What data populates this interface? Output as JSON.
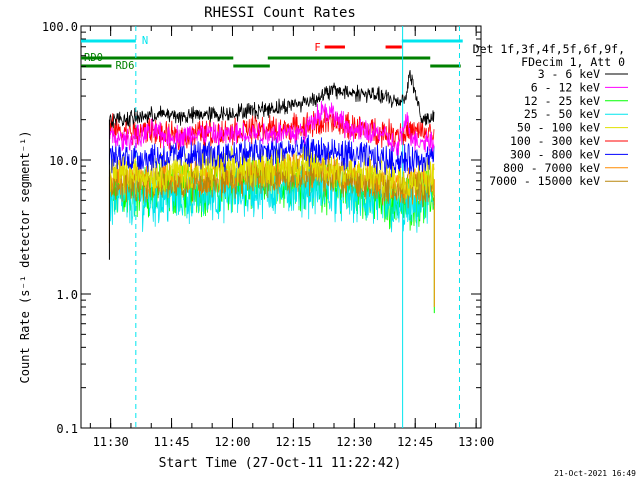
{
  "chart_data": {
    "type": "line",
    "title": "RHESSI Count Rates",
    "xlabel": "Start Time (27-Oct-11 11:22:42)",
    "ylabel": "Count Rate (s⁻¹ detector segment⁻¹)",
    "yscale": "log",
    "ylim": [
      0.1,
      100.0
    ],
    "xlim_minutes_after_start": [
      0,
      98.5
    ],
    "x_tick_labels": [
      "11:30",
      "11:45",
      "12:00",
      "12:15",
      "12:30",
      "12:45",
      "13:00"
    ],
    "x_tick_minutes_after_start": [
      7.3,
      22.3,
      37.3,
      52.3,
      67.3,
      82.3,
      97.3
    ],
    "y_tick_labels": [
      "100.0",
      "10.0",
      "1.0",
      "0.1"
    ],
    "y_tick_values": [
      100.0,
      10.0,
      1.0,
      0.1
    ],
    "legend_position": "right",
    "legend_header": [
      "Det 1f,3f,4f,5f,6f,9f,",
      "FDecim 1, Att 0"
    ],
    "series": [
      {
        "name": "3 - 6 keV",
        "color": "#000000",
        "x": [
          7,
          10,
          15,
          20,
          25,
          30,
          35,
          40,
          45,
          50,
          55,
          58,
          62,
          66,
          70,
          74,
          78,
          80,
          81,
          84,
          87
        ],
        "values": [
          20,
          20,
          21,
          22,
          21,
          22,
          22,
          23,
          24,
          25,
          27,
          29,
          33,
          32,
          31,
          30,
          27,
          30,
          45,
          20,
          20
        ]
      },
      {
        "name": "6 - 12 keV",
        "color": "#ff00ff",
        "x": [
          7,
          10,
          15,
          18,
          20,
          25,
          30,
          35,
          40,
          45,
          50,
          55,
          58,
          60,
          62,
          66,
          70,
          74,
          78,
          80,
          82,
          84,
          87
        ],
        "values": [
          15,
          14,
          15,
          17,
          15,
          15,
          16,
          15,
          16,
          16,
          16,
          16,
          22,
          24,
          22,
          17,
          16,
          16,
          12,
          20,
          14,
          14,
          14
        ]
      },
      {
        "name": "12 - 25 keV",
        "color": "#00ff00",
        "x": [
          7,
          15,
          25,
          35,
          45,
          55,
          65,
          75,
          80,
          87
        ],
        "values": [
          5.5,
          5.8,
          6.0,
          6.3,
          6.8,
          7.0,
          6.2,
          5.0,
          4.8,
          5.5
        ]
      },
      {
        "name": "25 - 50 keV",
        "color": "#00e5ee",
        "x": [
          7,
          15,
          25,
          35,
          45,
          55,
          65,
          75,
          80,
          87
        ],
        "values": [
          5.0,
          5.0,
          5.3,
          5.6,
          6.0,
          6.2,
          5.5,
          4.5,
          4.2,
          5.0
        ]
      },
      {
        "name": "50 - 100 keV",
        "color": "#e0e000",
        "x": [
          7,
          15,
          25,
          35,
          45,
          55,
          65,
          75,
          80,
          87
        ],
        "values": [
          8.0,
          7.8,
          8.2,
          8.5,
          9.0,
          9.2,
          8.3,
          7.5,
          7.2,
          7.8
        ]
      },
      {
        "name": "100 - 300 keV",
        "color": "#ff0000",
        "x": [
          7,
          10,
          15,
          18,
          20,
          25,
          30,
          35,
          40,
          45,
          50,
          55,
          60,
          65,
          70,
          75,
          80,
          84,
          87
        ],
        "values": [
          18,
          16,
          16,
          17,
          15,
          15,
          16,
          16,
          17,
          17,
          17,
          18,
          19,
          18,
          17,
          16,
          16,
          16,
          16
        ]
      },
      {
        "name": "300 - 800 keV",
        "color": "#0000ff",
        "x": [
          7,
          15,
          25,
          35,
          45,
          55,
          65,
          75,
          80,
          87
        ],
        "values": [
          10.5,
          10.5,
          10.8,
          11,
          11.5,
          12,
          11,
          10,
          10,
          10.5
        ]
      },
      {
        "name": "800 - 7000 keV",
        "color": "#ff8c00",
        "x": [
          7,
          15,
          25,
          35,
          45,
          55,
          65,
          75,
          80,
          87
        ],
        "values": [
          7.5,
          7.2,
          7.5,
          7.8,
          8.2,
          8.5,
          7.8,
          6.8,
          6.5,
          7.2
        ]
      },
      {
        "name": "7000 - 15000 keV",
        "color": "#b8860b",
        "x": [
          7,
          15,
          25,
          35,
          45,
          55,
          65,
          75,
          80,
          87
        ],
        "values": [
          6.8,
          6.6,
          6.9,
          7.2,
          7.5,
          7.8,
          7.2,
          6.3,
          6.0,
          6.6
        ]
      }
    ],
    "annotations": [
      {
        "label": "N",
        "color": "#00e5ee",
        "x": [
          0,
          13.5
        ],
        "row": "top"
      },
      {
        "label": "",
        "color": "#00e5ee",
        "x": [
          79,
          94
        ],
        "row": "top"
      },
      {
        "label": "F",
        "color": "#ff0000",
        "x": [
          60,
          65
        ],
        "row": "upper"
      },
      {
        "label": "",
        "color": "#ff0000",
        "x": [
          75,
          79
        ],
        "row": "upper"
      },
      {
        "label": "RD0",
        "color": "#008000",
        "x": [
          0,
          37.5
        ],
        "row": "middle"
      },
      {
        "label": "",
        "color": "#008000",
        "x": [
          46,
          86
        ],
        "row": "middle"
      },
      {
        "label": "RD6",
        "color": "#008000",
        "x": [
          0,
          7.5
        ],
        "row": "lower"
      },
      {
        "label": "",
        "color": "#008000",
        "x": [
          37.5,
          46.5
        ],
        "row": "lower"
      },
      {
        "label": "",
        "color": "#008000",
        "x": [
          86,
          93.5
        ],
        "row": "lower"
      }
    ],
    "vertical_markers": [
      {
        "x": 13.5,
        "color": "#00e5ee",
        "style": "dashed"
      },
      {
        "x": 79.2,
        "color": "#00e5ee",
        "style": "solid"
      },
      {
        "x": 93.2,
        "color": "#00e5ee",
        "style": "dashed"
      }
    ],
    "grid": false,
    "timestamp": "21-Oct-2021 16:49"
  }
}
